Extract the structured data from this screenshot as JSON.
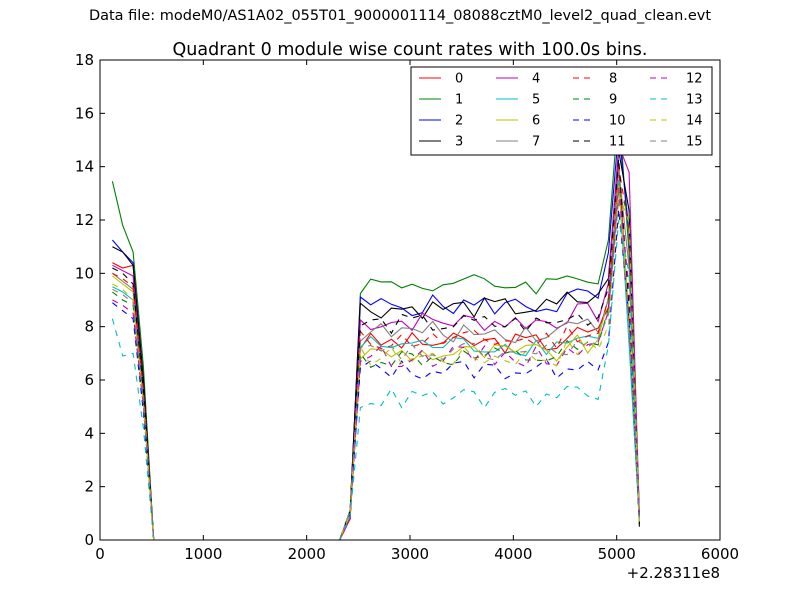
{
  "header": {
    "text": "Data file: modeM0/AS1A02_055T01_9000001114_08088cztM0_level2_quad_clean.evt"
  },
  "chart_data": {
    "type": "line",
    "title": "Quadrant 0 module wise count rates with 100.0s bins.",
    "xlabel": "",
    "ylabel": "",
    "x_offset_label": "+2.28311e8",
    "xlim": [
      0,
      6000
    ],
    "ylim": [
      0,
      18
    ],
    "xticks": [
      0,
      1000,
      2000,
      3000,
      4000,
      5000,
      6000
    ],
    "yticks": [
      0,
      2,
      4,
      6,
      8,
      10,
      12,
      14,
      16,
      18
    ],
    "grid": false,
    "legend": {
      "placement": "top-right",
      "columns": 4
    },
    "segments": [
      {
        "x": [
          120,
          220,
          320,
          420,
          520
        ],
        "points": 5
      },
      {
        "x": [
          520,
          620,
          720,
          820,
          920,
          1020,
          1120,
          1220,
          1320,
          1420,
          1520,
          1620,
          1720,
          1820,
          1920,
          2020,
          2120,
          2220,
          2320,
          2420
        ],
        "zero": true
      },
      {
        "x": [
          2320,
          2420,
          2520,
          2620,
          2720,
          2820,
          2920,
          3020,
          3120,
          3220,
          3320,
          3420,
          3520,
          3620,
          3720,
          3820,
          3920,
          4020,
          4120,
          4220,
          4320,
          4420,
          4520,
          4620,
          4720,
          4820,
          4920,
          5020,
          5120,
          5220
        ]
      }
    ],
    "series": [
      {
        "name": "0",
        "color": "#ff0000",
        "style": "solid",
        "v": [
          10.4,
          10.2,
          10.3,
          5.5,
          0
        ],
        "plateau": 7.4,
        "peak": 14.1,
        "end": 1.0
      },
      {
        "name": "1",
        "color": "#008000",
        "style": "solid",
        "v": [
          13.45,
          11.8,
          10.8,
          6.5,
          0
        ],
        "plateau": 9.6,
        "peak": 16.3,
        "end": 0.8
      },
      {
        "name": "2",
        "color": "#0000ff",
        "style": "solid",
        "v": [
          11.25,
          10.8,
          10.4,
          6.0,
          0
        ],
        "plateau": 8.8,
        "peak": 15.4,
        "end": 0.9
      },
      {
        "name": "3",
        "color": "#000000",
        "style": "solid",
        "v": [
          11.0,
          10.8,
          10.3,
          6.0,
          0
        ],
        "plateau": 8.7,
        "peak": 14.6,
        "end": 0.6
      },
      {
        "name": "4",
        "color": "#bf00bf",
        "style": "solid",
        "v": [
          10.3,
          10.1,
          9.9,
          5.6,
          0
        ],
        "plateau": 8.2,
        "peak": 14.8,
        "end": 0.9
      },
      {
        "name": "5",
        "color": "#00bfbf",
        "style": "solid",
        "v": [
          9.5,
          9.3,
          9.0,
          5.2,
          0
        ],
        "plateau": 7.3,
        "peak": 13.5,
        "end": 0.7
      },
      {
        "name": "6",
        "color": "#bfbf00",
        "style": "solid",
        "v": [
          9.9,
          9.6,
          9.3,
          5.4,
          0
        ],
        "plateau": 7.0,
        "peak": 13.3,
        "end": 0.8
      },
      {
        "name": "7",
        "color": "#808080",
        "style": "solid",
        "v": [
          10.0,
          9.7,
          9.4,
          5.5,
          0
        ],
        "plateau": 7.8,
        "peak": 13.9,
        "end": 0.7
      },
      {
        "name": "8",
        "color": "#ff0000",
        "style": "dashed",
        "v": [
          10.0,
          9.8,
          9.5,
          5.5,
          0
        ],
        "plateau": 7.5,
        "peak": 14.0,
        "end": 0.9
      },
      {
        "name": "9",
        "color": "#008000",
        "style": "dashed",
        "v": [
          9.3,
          9.0,
          8.8,
          5.0,
          0
        ],
        "plateau": 6.8,
        "peak": 13.0,
        "end": 0.8
      },
      {
        "name": "10",
        "color": "#0000ff",
        "style": "dashed",
        "v": [
          8.9,
          8.6,
          8.3,
          4.8,
          0
        ],
        "plateau": 6.4,
        "peak": 12.4,
        "end": 0.7
      },
      {
        "name": "11",
        "color": "#000000",
        "style": "dashed",
        "v": [
          10.2,
          10.0,
          9.6,
          5.6,
          0
        ],
        "plateau": 8.1,
        "peak": 14.3,
        "end": 0.5
      },
      {
        "name": "12",
        "color": "#bf00bf",
        "style": "dashed",
        "v": [
          9.0,
          8.8,
          8.5,
          5.0,
          0
        ],
        "plateau": 6.9,
        "peak": 13.2,
        "end": 0.8
      },
      {
        "name": "13",
        "color": "#00bfbf",
        "style": "dashed",
        "v": [
          8.3,
          6.9,
          7.0,
          4.2,
          0
        ],
        "plateau": 5.3,
        "peak": 12.0,
        "end": 0.6
      },
      {
        "name": "14",
        "color": "#bfbf00",
        "style": "dashed",
        "v": [
          9.6,
          9.4,
          9.0,
          5.2,
          0
        ],
        "plateau": 6.9,
        "peak": 13.0,
        "end": 0.7
      },
      {
        "name": "15",
        "color": "#808080",
        "style": "dashed",
        "v": [
          9.4,
          9.2,
          8.9,
          5.1,
          0
        ],
        "plateau": 7.0,
        "peak": 12.8,
        "end": 0.7
      }
    ]
  }
}
